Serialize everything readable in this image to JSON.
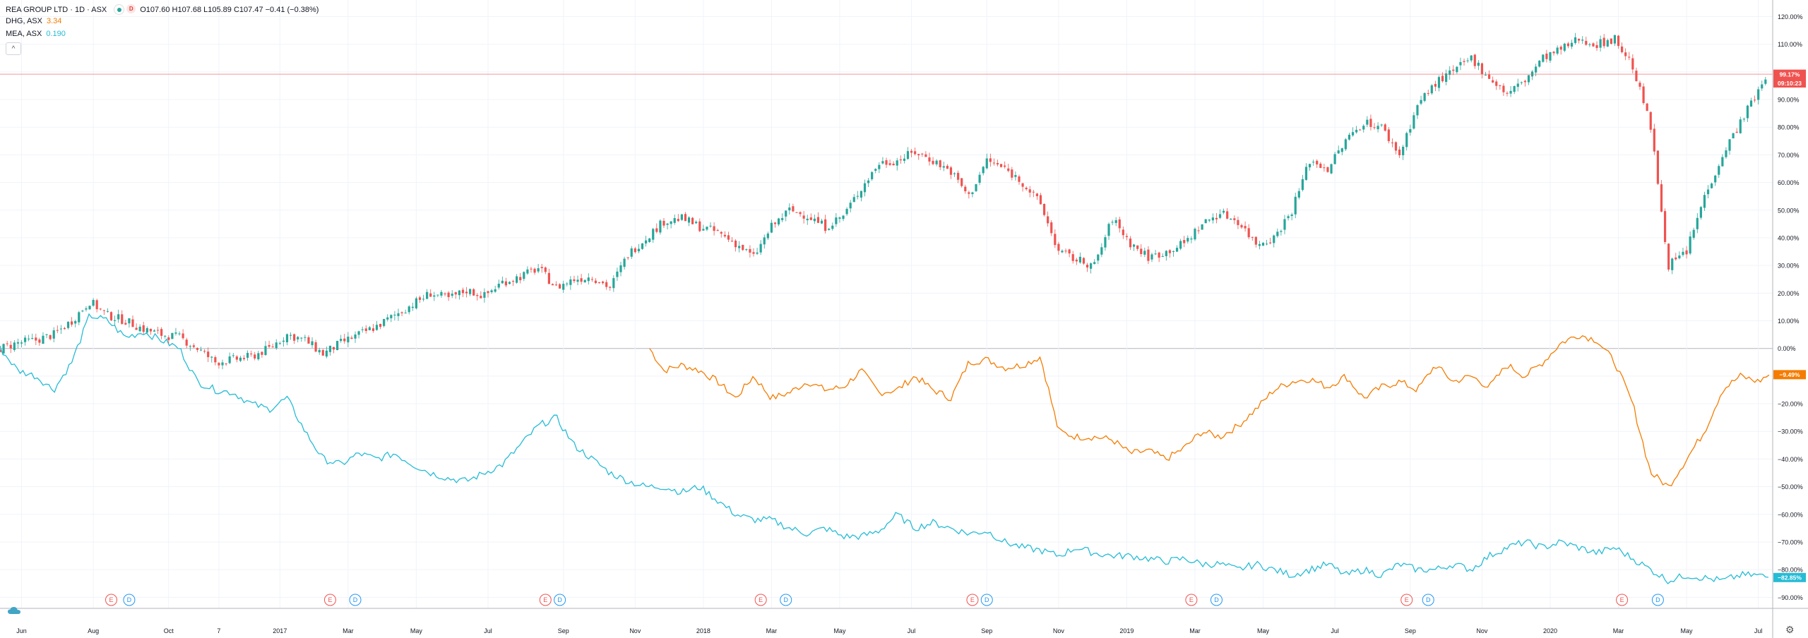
{
  "legend": {
    "main": {
      "name": "REA GROUP LTD · 1D · ASX",
      "badge": "D",
      "ohlc": "O107.60  H107.68  L105.89  C107.47  −0.41 (−0.38%)"
    },
    "dhg": {
      "name": "DHG, ASX",
      "value": "3.34"
    },
    "mea": {
      "name": "MEA, ASX",
      "value": "0.190"
    },
    "collapse_icon": "chevron-up-icon"
  },
  "colors": {
    "up": "#26a69a",
    "down": "#ef5350",
    "orange": "#f57c00",
    "teal": "#26bcd5",
    "grid": "#f0f3fa",
    "axis_text": "#131722",
    "baseline": "#b2b5be",
    "price_line": "#ef5350"
  },
  "y_axis": {
    "ticks": [
      "120.00%",
      "110.00%",
      "100.00%",
      "90.00%",
      "80.00%",
      "70.00%",
      "60.00%",
      "50.00%",
      "40.00%",
      "30.00%",
      "20.00%",
      "10.00%",
      "0.00%",
      "−10.00%",
      "−20.00%",
      "−30.00%",
      "−40.00%",
      "−50.00%",
      "−60.00%",
      "−70.00%",
      "−80.00%",
      "−90.00%"
    ],
    "tick_values": [
      120,
      110,
      100,
      90,
      80,
      70,
      60,
      50,
      40,
      30,
      20,
      10,
      0,
      -10,
      -20,
      -30,
      -40,
      -50,
      -60,
      -70,
      -80,
      -90
    ],
    "range": [
      -94,
      126
    ]
  },
  "x_axis": {
    "labels": [
      "Jun",
      "Aug",
      "Oct",
      "7",
      "2017",
      "Mar",
      "May",
      "Jul",
      "Sep",
      "Nov",
      "2018",
      "Mar",
      "May",
      "Jul",
      "Sep",
      "Nov",
      "2019",
      "Mar",
      "May",
      "Jul",
      "Sep",
      "Nov",
      "2020",
      "Mar",
      "May",
      "Jul"
    ],
    "positions": [
      0.6,
      2.6,
      4.7,
      6.1,
      7.8,
      9.7,
      11.6,
      13.6,
      15.7,
      17.7,
      19.6,
      21.5,
      23.4,
      25.4,
      27.5,
      29.5,
      31.4,
      33.3,
      35.2,
      37.2,
      39.3,
      41.3,
      43.2,
      45.1,
      47.0,
      49.0
    ],
    "unit": "months since May 2016",
    "range": [
      0,
      49.4
    ]
  },
  "price_labels": [
    {
      "text": "99.17%",
      "value": 99.17,
      "color": "#ef5350"
    },
    {
      "text": "09:10:23",
      "value": 96.0,
      "color": "#ef5350"
    },
    {
      "text": "−9.49%",
      "value": -9.49,
      "color": "#f57c00"
    },
    {
      "text": "−82.85%",
      "value": -82.85,
      "color": "#26bcd5"
    }
  ],
  "event_markers": [
    {
      "text": "E",
      "month": 3.1,
      "kind": "earnings"
    },
    {
      "text": "D",
      "month": 3.6,
      "kind": "dividend"
    },
    {
      "text": "E",
      "month": 9.2,
      "kind": "earnings"
    },
    {
      "text": "D",
      "month": 9.9,
      "kind": "dividend"
    },
    {
      "text": "E",
      "month": 15.2,
      "kind": "earnings"
    },
    {
      "text": "D",
      "month": 15.6,
      "kind": "dividend"
    },
    {
      "text": "E",
      "month": 21.2,
      "kind": "earnings"
    },
    {
      "text": "D",
      "month": 21.9,
      "kind": "dividend"
    },
    {
      "text": "E",
      "month": 27.1,
      "kind": "earnings"
    },
    {
      "text": "D",
      "month": 27.5,
      "kind": "dividend"
    },
    {
      "text": "E",
      "month": 33.2,
      "kind": "earnings"
    },
    {
      "text": "D",
      "month": 33.9,
      "kind": "dividend"
    },
    {
      "text": "E",
      "month": 39.2,
      "kind": "earnings"
    },
    {
      "text": "D",
      "month": 39.8,
      "kind": "dividend"
    },
    {
      "text": "E",
      "month": 45.2,
      "kind": "earnings"
    },
    {
      "text": "D",
      "month": 46.2,
      "kind": "dividend"
    }
  ],
  "chart_data": {
    "type": "line",
    "title": "REA GROUP LTD · 1D · ASX",
    "y_unit": "% change",
    "grid": true,
    "series": [
      {
        "name": "REA GROUP LTD",
        "style": "candlestick",
        "points": [
          [
            0,
            0
          ],
          [
            0.5,
            2
          ],
          [
            1,
            3
          ],
          [
            1.5,
            5
          ],
          [
            2,
            10
          ],
          [
            2.5,
            17
          ],
          [
            3,
            12
          ],
          [
            3.5,
            10
          ],
          [
            4,
            7
          ],
          [
            4.5,
            5
          ],
          [
            5,
            4
          ],
          [
            5.5,
            0
          ],
          [
            6,
            -5
          ],
          [
            6.5,
            -4
          ],
          [
            7,
            -3
          ],
          [
            7.5,
            0
          ],
          [
            8,
            5
          ],
          [
            8.5,
            3
          ],
          [
            9,
            -2
          ],
          [
            9.5,
            2
          ],
          [
            10,
            5
          ],
          [
            10.5,
            8
          ],
          [
            11,
            12
          ],
          [
            11.5,
            16
          ],
          [
            12,
            20
          ],
          [
            12.5,
            18
          ],
          [
            13,
            21
          ],
          [
            13.5,
            19
          ],
          [
            14,
            24
          ],
          [
            14.5,
            26
          ],
          [
            15,
            29
          ],
          [
            15.5,
            22
          ],
          [
            16,
            25
          ],
          [
            16.5,
            26
          ],
          [
            17,
            22
          ],
          [
            17.5,
            34
          ],
          [
            18,
            40
          ],
          [
            18.5,
            46
          ],
          [
            19,
            47
          ],
          [
            19.5,
            44
          ],
          [
            20,
            42
          ],
          [
            20.5,
            38
          ],
          [
            21,
            33
          ],
          [
            21.5,
            44
          ],
          [
            22,
            50
          ],
          [
            22.5,
            48
          ],
          [
            23,
            44
          ],
          [
            23.5,
            48
          ],
          [
            24,
            58
          ],
          [
            24.5,
            67
          ],
          [
            25,
            68
          ],
          [
            25.5,
            71
          ],
          [
            26,
            68
          ],
          [
            26.5,
            64
          ],
          [
            27,
            55
          ],
          [
            27.5,
            68
          ],
          [
            28,
            65
          ],
          [
            28.5,
            60
          ],
          [
            29,
            52
          ],
          [
            29.5,
            35
          ],
          [
            30,
            32
          ],
          [
            30.5,
            30
          ],
          [
            31,
            47
          ],
          [
            31.5,
            38
          ],
          [
            32,
            33
          ],
          [
            32.5,
            35
          ],
          [
            33,
            38
          ],
          [
            33.5,
            45
          ],
          [
            34,
            49
          ],
          [
            34.5,
            46
          ],
          [
            35,
            38
          ],
          [
            35.5,
            40
          ],
          [
            36,
            50
          ],
          [
            36.5,
            68
          ],
          [
            37,
            65
          ],
          [
            37.5,
            75
          ],
          [
            38,
            82
          ],
          [
            38.5,
            80
          ],
          [
            39,
            70
          ],
          [
            39.5,
            88
          ],
          [
            40,
            96
          ],
          [
            40.5,
            100
          ],
          [
            41,
            105
          ],
          [
            41.5,
            98
          ],
          [
            42,
            92
          ],
          [
            42.5,
            97
          ],
          [
            43,
            105
          ],
          [
            43.5,
            108
          ],
          [
            44,
            112
          ],
          [
            44.5,
            110
          ],
          [
            45,
            112
          ],
          [
            45.5,
            102
          ],
          [
            46,
            80
          ],
          [
            46.5,
            30
          ],
          [
            47,
            35
          ],
          [
            47.5,
            55
          ],
          [
            48,
            70
          ],
          [
            48.5,
            82
          ],
          [
            49,
            93
          ],
          [
            49.3,
            99.17
          ]
        ]
      },
      {
        "name": "DHG, ASX",
        "style": "line",
        "points": [
          [
            18.1,
            0
          ],
          [
            18.5,
            -8
          ],
          [
            19,
            -6
          ],
          [
            19.5,
            -8
          ],
          [
            20,
            -12
          ],
          [
            20.5,
            -18
          ],
          [
            21,
            -10
          ],
          [
            21.5,
            -18
          ],
          [
            22,
            -16
          ],
          [
            22.5,
            -12
          ],
          [
            23,
            -15
          ],
          [
            23.5,
            -14
          ],
          [
            24,
            -8
          ],
          [
            24.5,
            -16
          ],
          [
            25,
            -15
          ],
          [
            25.5,
            -10
          ],
          [
            26,
            -15
          ],
          [
            26.5,
            -18
          ],
          [
            27,
            -5
          ],
          [
            27.5,
            -4
          ],
          [
            28,
            -7
          ],
          [
            28.5,
            -6
          ],
          [
            29,
            -3
          ],
          [
            29.5,
            -30
          ],
          [
            30,
            -32
          ],
          [
            30.5,
            -32
          ],
          [
            31,
            -33
          ],
          [
            31.5,
            -38
          ],
          [
            32,
            -37
          ],
          [
            32.5,
            -40
          ],
          [
            33,
            -36
          ],
          [
            33.5,
            -30
          ],
          [
            34,
            -32
          ],
          [
            34.5,
            -28
          ],
          [
            35,
            -22
          ],
          [
            35.5,
            -15
          ],
          [
            36,
            -12
          ],
          [
            36.5,
            -11
          ],
          [
            37,
            -14
          ],
          [
            37.5,
            -10
          ],
          [
            38,
            -18
          ],
          [
            38.5,
            -14
          ],
          [
            39,
            -12
          ],
          [
            39.5,
            -15
          ],
          [
            40,
            -6
          ],
          [
            40.5,
            -12
          ],
          [
            41,
            -10
          ],
          [
            41.5,
            -14
          ],
          [
            42,
            -6
          ],
          [
            42.5,
            -10
          ],
          [
            43,
            -5
          ],
          [
            43.5,
            2
          ],
          [
            44,
            5
          ],
          [
            44.5,
            3
          ],
          [
            45,
            -5
          ],
          [
            45.5,
            -20
          ],
          [
            46,
            -45
          ],
          [
            46.5,
            -50
          ],
          [
            47,
            -40
          ],
          [
            47.5,
            -30
          ],
          [
            48,
            -15
          ],
          [
            48.5,
            -10
          ],
          [
            49,
            -12
          ],
          [
            49.3,
            -9.49
          ]
        ]
      },
      {
        "name": "MEA, ASX",
        "style": "line",
        "points": [
          [
            0,
            0
          ],
          [
            0.5,
            -8
          ],
          [
            1,
            -10
          ],
          [
            1.5,
            -15
          ],
          [
            2,
            -5
          ],
          [
            2.5,
            12
          ],
          [
            3,
            10
          ],
          [
            3.5,
            4
          ],
          [
            4,
            6
          ],
          [
            4.5,
            3
          ],
          [
            5,
            0
          ],
          [
            5.5,
            -12
          ],
          [
            6,
            -15
          ],
          [
            6.5,
            -16
          ],
          [
            7,
            -20
          ],
          [
            7.5,
            -22
          ],
          [
            8,
            -18
          ],
          [
            8.5,
            -30
          ],
          [
            9,
            -40
          ],
          [
            9.5,
            -42
          ],
          [
            10,
            -38
          ],
          [
            10.5,
            -40
          ],
          [
            11,
            -38
          ],
          [
            11.5,
            -42
          ],
          [
            12,
            -45
          ],
          [
            12.5,
            -47
          ],
          [
            13,
            -48
          ],
          [
            13.5,
            -45
          ],
          [
            14,
            -42
          ],
          [
            14.5,
            -35
          ],
          [
            15,
            -28
          ],
          [
            15.5,
            -25
          ],
          [
            16,
            -35
          ],
          [
            16.5,
            -40
          ],
          [
            17,
            -45
          ],
          [
            17.5,
            -48
          ],
          [
            18,
            -50
          ],
          [
            18.5,
            -50
          ],
          [
            19,
            -52
          ],
          [
            19.5,
            -50
          ],
          [
            20,
            -55
          ],
          [
            20.5,
            -60
          ],
          [
            21,
            -62
          ],
          [
            21.5,
            -62
          ],
          [
            22,
            -65
          ],
          [
            22.5,
            -67
          ],
          [
            23,
            -65
          ],
          [
            23.5,
            -68
          ],
          [
            24,
            -68
          ],
          [
            24.5,
            -66
          ],
          [
            25,
            -60
          ],
          [
            25.5,
            -65
          ],
          [
            26,
            -63
          ],
          [
            26.5,
            -65
          ],
          [
            27,
            -67
          ],
          [
            27.5,
            -66
          ],
          [
            28,
            -70
          ],
          [
            28.5,
            -72
          ],
          [
            29,
            -73
          ],
          [
            29.5,
            -75
          ],
          [
            30,
            -72
          ],
          [
            30.5,
            -74
          ],
          [
            31,
            -75
          ],
          [
            31.5,
            -75
          ],
          [
            32,
            -76
          ],
          [
            32.5,
            -77
          ],
          [
            33,
            -76
          ],
          [
            33.5,
            -78
          ],
          [
            34,
            -78
          ],
          [
            34.5,
            -80
          ],
          [
            35,
            -78
          ],
          [
            35.5,
            -80
          ],
          [
            36,
            -82
          ],
          [
            36.5,
            -80
          ],
          [
            37,
            -78
          ],
          [
            37.5,
            -82
          ],
          [
            38,
            -80
          ],
          [
            38.5,
            -82
          ],
          [
            39,
            -78
          ],
          [
            39.5,
            -80
          ],
          [
            40,
            -80
          ],
          [
            40.5,
            -78
          ],
          [
            41,
            -80
          ],
          [
            41.5,
            -75
          ],
          [
            42,
            -72
          ],
          [
            42.5,
            -70
          ],
          [
            43,
            -72
          ],
          [
            43.5,
            -70
          ],
          [
            44,
            -72
          ],
          [
            44.5,
            -74
          ],
          [
            45,
            -72
          ],
          [
            45.5,
            -76
          ],
          [
            46,
            -80
          ],
          [
            46.5,
            -84
          ],
          [
            47,
            -82
          ],
          [
            47.5,
            -83
          ],
          [
            48,
            -84
          ],
          [
            48.5,
            -82
          ],
          [
            49,
            -82
          ],
          [
            49.3,
            -82.85
          ]
        ]
      }
    ]
  }
}
